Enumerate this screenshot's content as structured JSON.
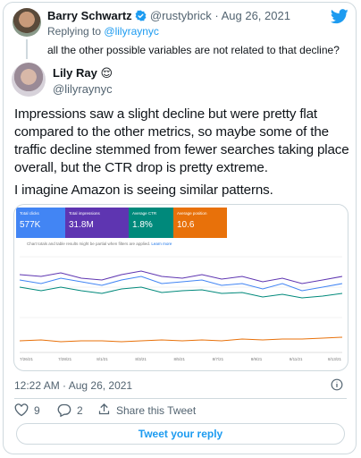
{
  "reply_to_tweet": {
    "name": "Barry Schwartz",
    "handle": "@rustybrick",
    "separator": "·",
    "date": "Aug 26, 2021",
    "replying_to_label": "Replying to",
    "replying_to": "@lilyraynyc",
    "text": "all the other possible variables are not related to that decline?"
  },
  "tweet": {
    "name": "Lily Ray",
    "emoji": "😌",
    "handle": "@lilyraynyc",
    "paragraph_lines": [
      "Impressions saw a slight decline but were pretty flat",
      "compared to the other metrics, so maybe some of the",
      "traffic decline stemmed from fewer searches taking place",
      "overall, but the CTR drop is pretty extreme."
    ],
    "second_paragraph": "I imagine Amazon is seeing similar patterns.",
    "image": {
      "cards": [
        {
          "label": "Total clicks",
          "value": "577K"
        },
        {
          "label": "Total impressions",
          "value": "31.8M"
        },
        {
          "label": "Average CTR",
          "value": "1.8%"
        },
        {
          "label": "Average position",
          "value": "10.6"
        }
      ],
      "notice": "Chart totals and table results might be partial when filters are applied.",
      "notice_link": "Learn more",
      "x_labels": [
        "7/26/21",
        "7/28/21",
        "8/1/21",
        "8/3/21",
        "8/5/21",
        "8/7/21",
        "8/9/21",
        "8/11/21",
        "8/13/21"
      ]
    },
    "timestamp": "12:22 AM · Aug 26, 2021",
    "likes": 9,
    "replies": 2,
    "share_label": "Share this Tweet"
  },
  "reply_button": "Tweet your reply"
}
